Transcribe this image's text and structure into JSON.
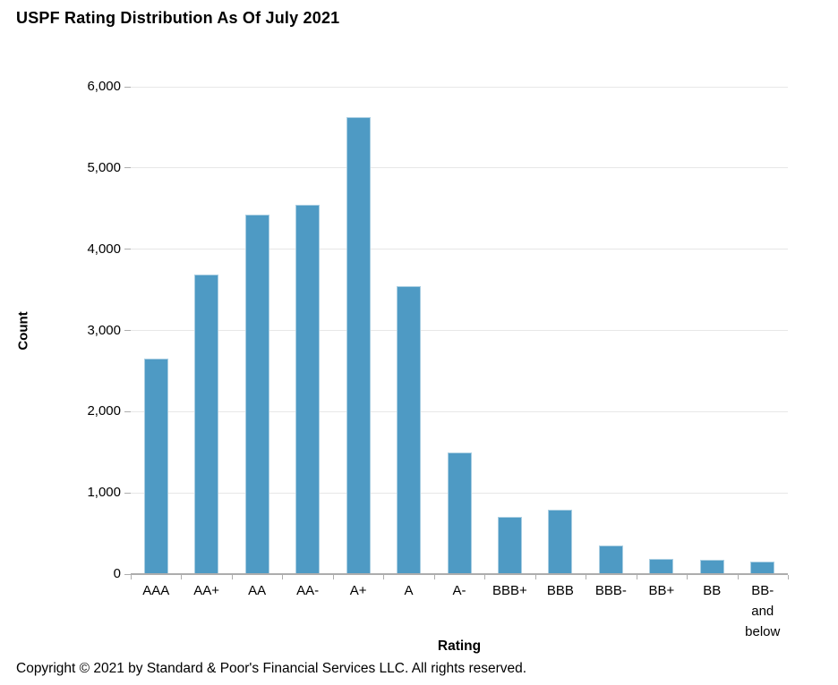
{
  "page": {
    "copyright": "Copyright © 2021 by Standard & Poor's Financial Services LLC. All rights reserved."
  },
  "chart_data": {
    "type": "bar",
    "title": "USPF Rating Distribution As Of July 2021",
    "xlabel": "Rating",
    "ylabel": "Count",
    "categories": [
      "AAA",
      "AA+",
      "AA",
      "AA-",
      "A+",
      "A",
      "A-",
      "BBB+",
      "BBB",
      "BBB-",
      "BB+",
      "BB",
      "BB-\nand\nbelow"
    ],
    "values": [
      2650,
      3690,
      4430,
      4550,
      5630,
      3540,
      1500,
      700,
      790,
      350,
      190,
      175,
      155
    ],
    "ylim": [
      0,
      6000
    ],
    "ytick_step": 1000,
    "ytick_labels": [
      "0",
      "1,000",
      "2,000",
      "3,000",
      "4,000",
      "5,000",
      "6,000"
    ],
    "grid": true,
    "legend": "none",
    "colors": {
      "bar_fill": "#4e9ac4",
      "bar_edge": "#a9cee2",
      "gridline": "#e7e7e7",
      "axis": "#adadad",
      "text": "#000000"
    }
  }
}
